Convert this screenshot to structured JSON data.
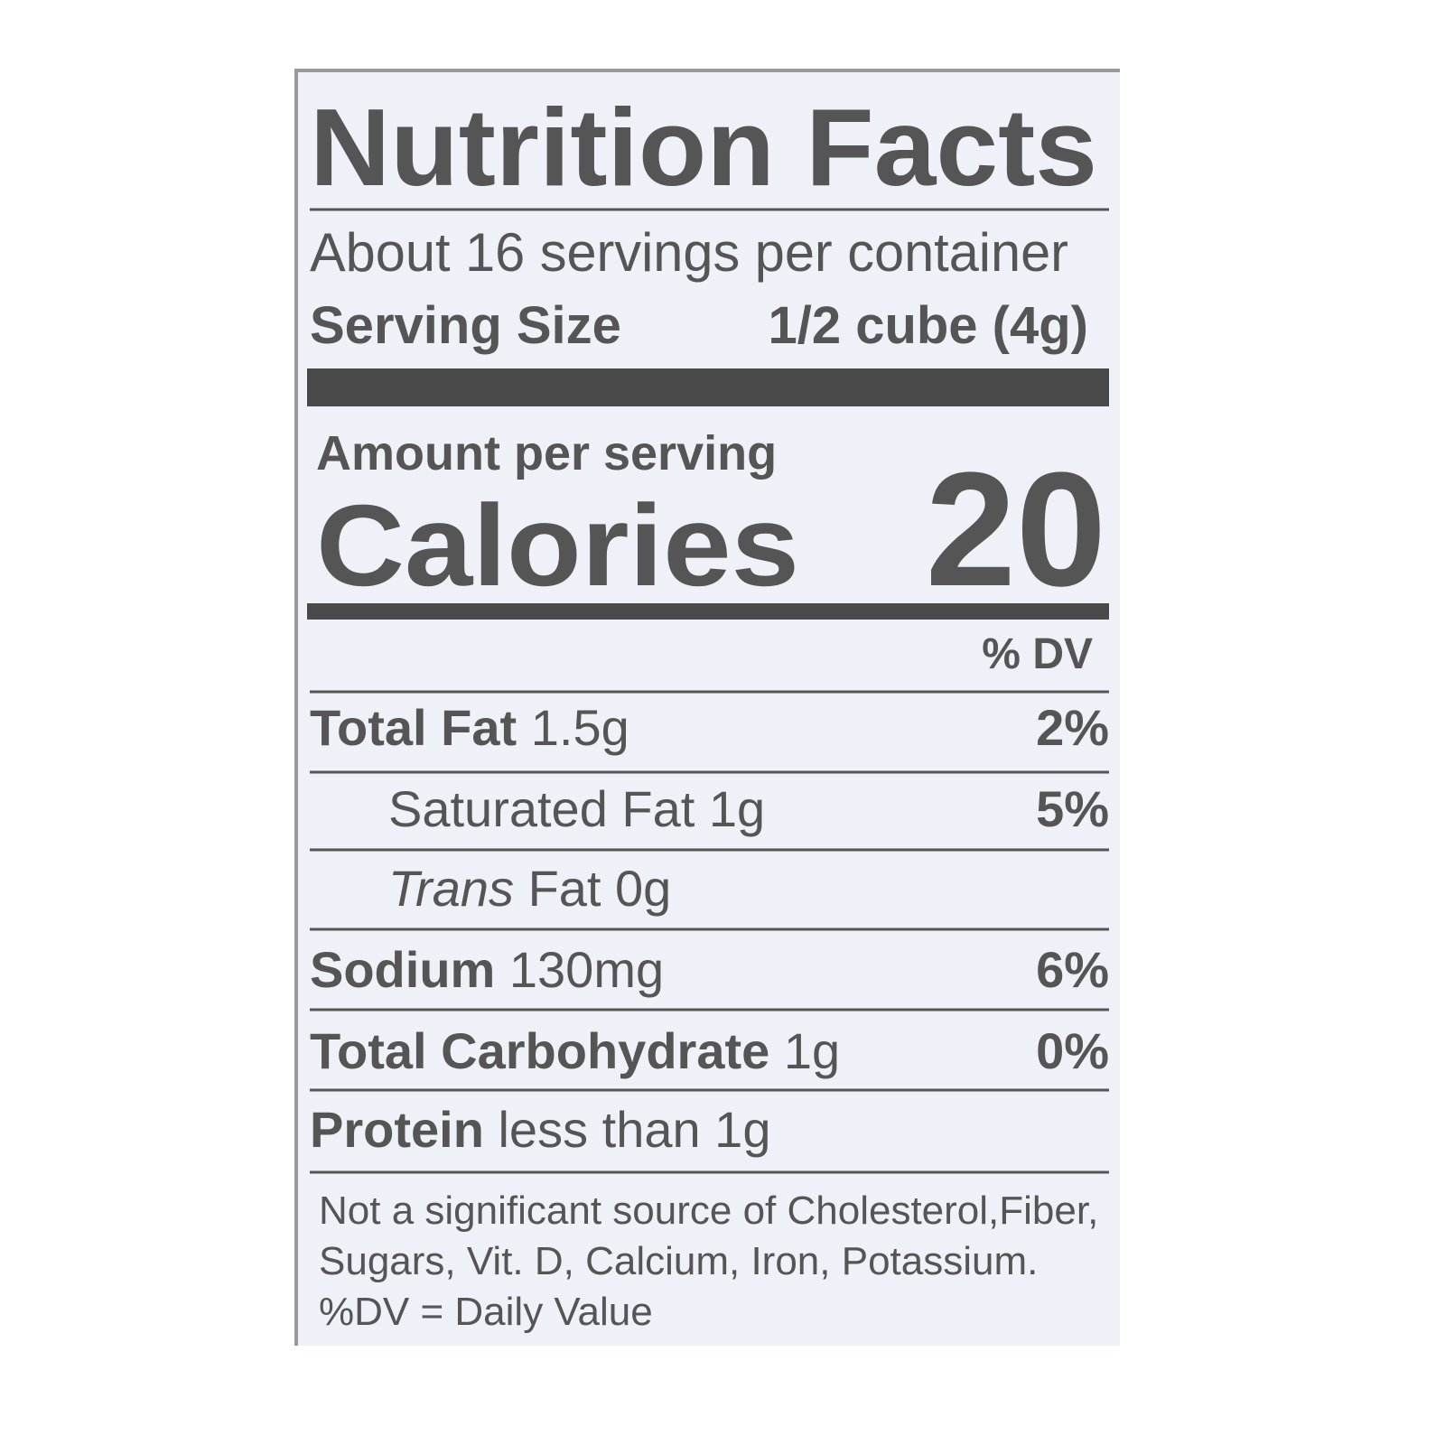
{
  "label": {
    "title": "Nutrition Facts",
    "servings": "About 16 servings per container",
    "serving_size": {
      "label": "Serving Size",
      "value": "1/2 cube (4g)"
    },
    "amount_per_serving": "Amount per serving",
    "calories": {
      "label": "Calories",
      "value": "20"
    },
    "dv_header": "% DV",
    "rows": [
      {
        "label": "Total Fat",
        "amount": "1.5g",
        "dv": "2%",
        "style": "bold",
        "indent": false
      },
      {
        "label": "Saturated Fat",
        "amount": "1g",
        "dv": "5%",
        "style": "plain",
        "indent": true
      },
      {
        "label": "Trans",
        "amount": "Fat 0g",
        "style": "italic",
        "indent": true
      },
      {
        "label": "Sodium",
        "amount": "130mg",
        "dv": "6%",
        "style": "bold",
        "indent": false
      },
      {
        "label": "Total Carbohydrate",
        "amount": "1g",
        "dv": "0%",
        "style": "bold",
        "indent": false
      },
      {
        "label": "Protein",
        "amount": "less than 1g",
        "style": "bold",
        "indent": false
      }
    ],
    "footnote": [
      "Not a significant source of Cholesterol,Fiber,",
      "Sugars, Vit. D, Calcium, Iron, Potassium.",
      "%DV = Daily Value"
    ]
  }
}
